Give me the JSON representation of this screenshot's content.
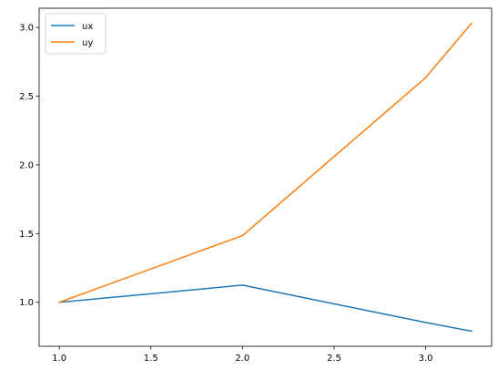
{
  "chart_data": {
    "type": "line",
    "title": "",
    "xlabel": "",
    "ylabel": "",
    "xlim": [
      0.89,
      3.36
    ],
    "ylim": [
      0.68,
      3.14
    ],
    "xticks": [
      1.0,
      1.5,
      2.0,
      2.5,
      3.0
    ],
    "xtick_labels": [
      "1.0",
      "1.5",
      "2.0",
      "2.5",
      "3.0"
    ],
    "yticks": [
      1.0,
      1.5,
      2.0,
      2.5,
      3.0
    ],
    "ytick_labels": [
      "1.0",
      "1.5",
      "2.0",
      "2.5",
      "3.0"
    ],
    "grid": false,
    "legend_position": "top-left",
    "series": [
      {
        "name": "ux",
        "color": "#1f77b4",
        "x": [
          1.0,
          2.0,
          3.0,
          3.25
        ],
        "y": [
          1.0,
          1.125,
          0.853,
          0.79
        ]
      },
      {
        "name": "uy",
        "color": "#ff7f0e",
        "x": [
          1.0,
          2.0,
          3.0,
          3.25
        ],
        "y": [
          1.0,
          1.485,
          2.635,
          3.03
        ]
      }
    ]
  }
}
